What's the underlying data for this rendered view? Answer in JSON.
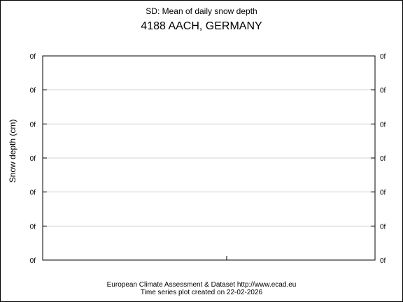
{
  "chart_data": {
    "type": "line",
    "title": "SD: Mean of daily snow depth",
    "subtitle": "4188 AACH, GERMANY",
    "ylabel": "Snow depth (cm)",
    "xlabel": "",
    "y_tick_labels": [
      "0f",
      "0f",
      "0f",
      "0f",
      "0f",
      "0f",
      "0f"
    ],
    "ylim": [
      0,
      6
    ],
    "grid": true,
    "series": []
  },
  "footer": {
    "line1": "European Climate Assessment & Dataset  http://www.ecad.eu",
    "line2": "Time series plot created on 22-02-2026"
  },
  "colors": {
    "frame": "#000000",
    "grid": "#d0d0d0",
    "background": "#ffffff"
  }
}
